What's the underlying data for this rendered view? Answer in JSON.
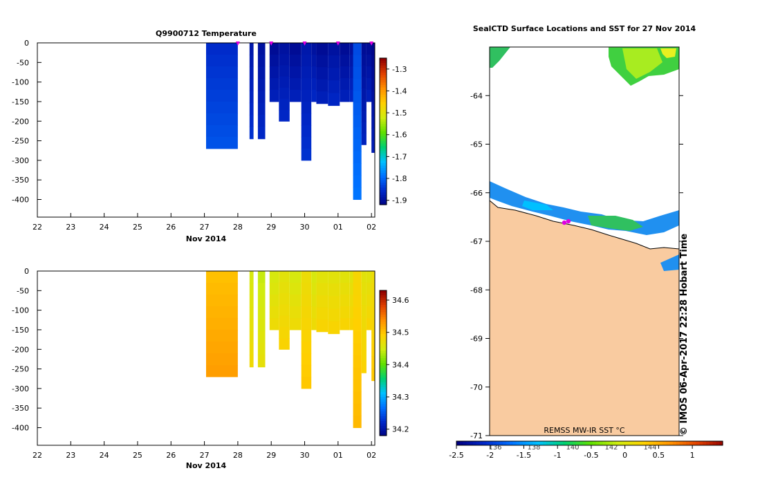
{
  "colors": {
    "land": "#f9cba0",
    "surface_marker": "#e000e0",
    "temperature_scale": [
      "#000080",
      "#0028c8",
      "#0070ff",
      "#00c0ff",
      "#00d070",
      "#60e000",
      "#d0ec10",
      "#ffd000",
      "#ff9000",
      "#e04000",
      "#900000"
    ],
    "salinity_scale": [
      "#000080",
      "#0028c8",
      "#0070ff",
      "#00c0ff",
      "#00d070",
      "#60e000",
      "#d0ec10",
      "#ffd000",
      "#ff9000",
      "#e04000",
      "#900000"
    ]
  },
  "chart_data": [
    {
      "type": "heatmap",
      "title": "Q9900712  Temperature",
      "xlabel": "Nov 2014",
      "ylabel": "",
      "x_ticks": [
        "22",
        "23",
        "24",
        "25",
        "26",
        "27",
        "28",
        "29",
        "30",
        "01",
        "02"
      ],
      "y_ticks": [
        "0",
        "-50",
        "-100",
        "-150",
        "-200",
        "-250",
        "-300",
        "-350",
        "-400"
      ],
      "xlim": [
        22,
        32.1
      ],
      "ylim": [
        -445,
        0
      ],
      "colorbar": {
        "ticks": [
          "-1.3",
          "-1.4",
          "-1.5",
          "-1.6",
          "-1.7",
          "-1.8",
          "-1.9"
        ],
        "range": [
          -1.92,
          -1.25
        ]
      },
      "surface_markers_x": [
        28.0,
        29.0,
        30.0,
        31.0,
        32.0
      ],
      "profiles": [
        {
          "x": 27.05,
          "w": 0.95,
          "depth": 270,
          "value": -1.83
        },
        {
          "x": 28.35,
          "w": 0.12,
          "depth": 245,
          "value": -1.86
        },
        {
          "x": 28.6,
          "w": 0.22,
          "depth": 245,
          "value": -1.87
        },
        {
          "x": 28.95,
          "w": 0.28,
          "depth": 150,
          "value": -1.88
        },
        {
          "x": 29.23,
          "w": 0.32,
          "depth": 200,
          "value": -1.87
        },
        {
          "x": 29.55,
          "w": 0.35,
          "depth": 150,
          "value": -1.88
        },
        {
          "x": 29.9,
          "w": 0.3,
          "depth": 300,
          "value": -1.86
        },
        {
          "x": 30.2,
          "w": 0.15,
          "depth": 150,
          "value": -1.87
        },
        {
          "x": 30.35,
          "w": 0.35,
          "depth": 155,
          "value": -1.88
        },
        {
          "x": 30.7,
          "w": 0.35,
          "depth": 160,
          "value": -1.87
        },
        {
          "x": 31.05,
          "w": 0.3,
          "depth": 150,
          "value": -1.88
        },
        {
          "x": 31.35,
          "w": 0.2,
          "depth": 150,
          "value": -1.87
        },
        {
          "x": 31.45,
          "w": 0.25,
          "depth": 400,
          "value": -1.8
        },
        {
          "x": 31.7,
          "w": 0.15,
          "depth": 260,
          "value": -1.88
        },
        {
          "x": 31.85,
          "w": 0.22,
          "depth": 150,
          "value": -1.88
        },
        {
          "x": 32.0,
          "w": 0.1,
          "depth": 280,
          "value": -1.89
        }
      ]
    },
    {
      "type": "heatmap",
      "title": "",
      "xlabel": "Nov 2014",
      "ylabel": "",
      "x_ticks": [
        "22",
        "23",
        "24",
        "25",
        "26",
        "27",
        "28",
        "29",
        "30",
        "01",
        "02"
      ],
      "y_ticks": [
        "0",
        "-50",
        "-100",
        "-150",
        "-200",
        "-250",
        "-300",
        "-350",
        "-400"
      ],
      "xlim": [
        22,
        32.1
      ],
      "ylim": [
        -445,
        0
      ],
      "colorbar": {
        "ticks": [
          "34.6",
          "34.5",
          "34.4",
          "34.3",
          "34.2"
        ],
        "range": [
          34.18,
          34.63
        ]
      },
      "profiles": [
        {
          "x": 27.05,
          "w": 0.95,
          "depth": 270,
          "value": 34.52
        },
        {
          "x": 28.35,
          "w": 0.12,
          "depth": 245,
          "value": 34.47
        },
        {
          "x": 28.6,
          "w": 0.22,
          "depth": 245,
          "value": 34.46
        },
        {
          "x": 28.95,
          "w": 0.28,
          "depth": 150,
          "value": 34.47
        },
        {
          "x": 29.23,
          "w": 0.32,
          "depth": 200,
          "value": 34.48
        },
        {
          "x": 29.55,
          "w": 0.35,
          "depth": 150,
          "value": 34.47
        },
        {
          "x": 29.9,
          "w": 0.3,
          "depth": 300,
          "value": 34.49
        },
        {
          "x": 30.2,
          "w": 0.15,
          "depth": 150,
          "value": 34.47
        },
        {
          "x": 30.35,
          "w": 0.35,
          "depth": 155,
          "value": 34.48
        },
        {
          "x": 30.7,
          "w": 0.35,
          "depth": 160,
          "value": 34.48
        },
        {
          "x": 31.05,
          "w": 0.3,
          "depth": 150,
          "value": 34.48
        },
        {
          "x": 31.35,
          "w": 0.2,
          "depth": 150,
          "value": 34.48
        },
        {
          "x": 31.45,
          "w": 0.25,
          "depth": 400,
          "value": 34.5
        },
        {
          "x": 31.7,
          "w": 0.15,
          "depth": 260,
          "value": 34.48
        },
        {
          "x": 31.85,
          "w": 0.22,
          "depth": 150,
          "value": 34.48
        },
        {
          "x": 32.0,
          "w": 0.1,
          "depth": 280,
          "value": 34.49
        }
      ]
    },
    {
      "type": "heatmap",
      "title": "SealCTD Surface Locations and SST for 27 Nov 2014",
      "xlabel": "",
      "ylabel": "",
      "y_ticks": [
        "-64",
        "-65",
        "-66",
        "-67",
        "-68",
        "-69",
        "-70",
        "-71"
      ],
      "ylim": [
        -71,
        -63.0
      ],
      "inner_x_ticks": [
        "136",
        "138",
        "140",
        "142",
        "144"
      ],
      "colorbar": {
        "ticks": [
          "-2.5",
          "-2",
          "-1.5",
          "-1",
          "-0.5",
          "0",
          "0.5",
          "1"
        ],
        "range": [
          -2.5,
          1.45
        ]
      },
      "source_label": "REMSS MW-IR SST °C",
      "credit": "© IMOS 06-Apr-2017 22:28 Hobart Time"
    }
  ]
}
